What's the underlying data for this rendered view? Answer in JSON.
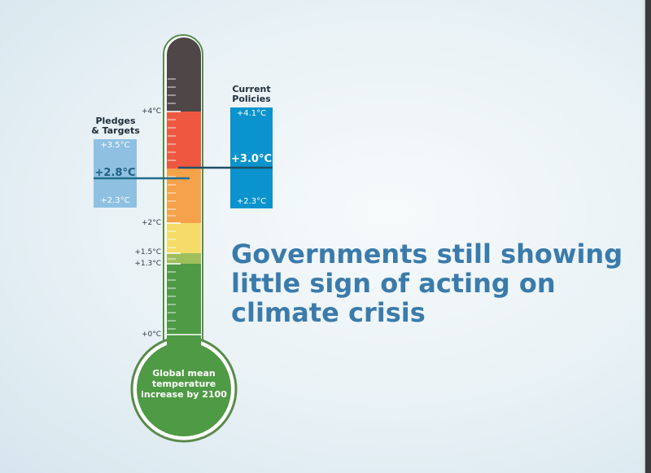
{
  "headline": "Governments still showing little sign of acting on climate crisis",
  "bulb_label": "Global mean temperature increase by 2100",
  "scale_labels": {
    "plus4": "+4°C",
    "plus2": "+2°C",
    "plus1_5": "+1.5°C",
    "plus1_3": "+1.3°C",
    "zero": "+0°C"
  },
  "pledges": {
    "heading_line1": "Pledges",
    "heading_line2": "& Targets",
    "high": "+3.5°C",
    "mid": "+2.8°C",
    "low": "+2.3°C",
    "color": "#8ec0e2"
  },
  "current": {
    "heading_line1": "Current",
    "heading_line2": "Policies",
    "high": "+4.1°C",
    "mid": "+3.0°C",
    "low": "+2.3°C",
    "color": "#0a93cd"
  },
  "colors": {
    "band_top": "#4f4747",
    "band_red": "#ee5841",
    "band_orange": "#f6a24a",
    "band_yellow": "#f5dc68",
    "band_lightgreen": "#9fbf5c",
    "band_green": "#4f9a45",
    "headline": "#3a7bab",
    "marker_line": "#1f6e8c"
  }
}
